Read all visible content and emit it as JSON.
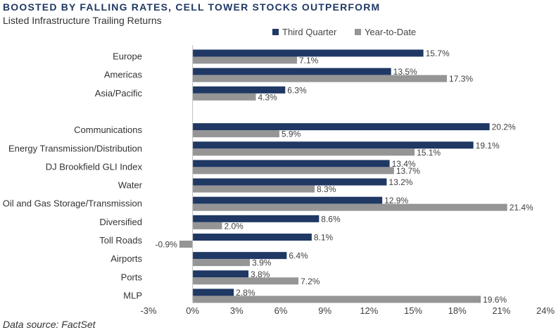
{
  "header": {
    "title": "BOOSTED BY FALLING RATES, CELL TOWER STOCKS OUTPERFORM",
    "subtitle": "Listed Infrastructure Trailing Returns"
  },
  "footer": {
    "source": "Data source: FactSet"
  },
  "colors": {
    "third_quarter": "#1f3864",
    "year_to_date": "#959595",
    "axis": "#bfbfbf"
  },
  "chart_data": {
    "type": "bar",
    "orientation": "horizontal",
    "title": "BOOSTED BY FALLING RATES, CELL TOWER STOCKS OUTPERFORM",
    "subtitle": "Listed Infrastructure Trailing Returns",
    "xlabel": "",
    "ylabel": "",
    "xlim": [
      -3,
      24
    ],
    "unit": "%",
    "ticks": [
      -3,
      0,
      3,
      6,
      9,
      12,
      15,
      18,
      21,
      24
    ],
    "tick_labels": [
      "-3%",
      "0%",
      "3%",
      "6%",
      "9%",
      "12%",
      "15%",
      "18%",
      "21%",
      "24%"
    ],
    "grid": false,
    "legend_position": "top-right",
    "categories": [
      "Europe",
      "Americas",
      "Asia/Pacific",
      "",
      "Communications",
      "Energy Transmission/Distribution",
      "DJ Brookfield GLI Index",
      "Water",
      "Oil and Gas Storage/Transmission",
      "Diversified",
      "Toll Roads",
      "Airports",
      "Ports",
      "MLP"
    ],
    "series": [
      {
        "name": "Third Quarter",
        "values": [
          15.7,
          13.5,
          6.3,
          null,
          20.2,
          19.1,
          13.4,
          13.2,
          12.9,
          8.6,
          8.1,
          6.4,
          3.8,
          2.8
        ],
        "labels": [
          "15.7%",
          "13.5%",
          "6.3%",
          "",
          "20.2%",
          "19.1%",
          "13.4%",
          "13.2%",
          "12.9%",
          "8.6%",
          "8.1%",
          "6.4%",
          "3.8%",
          "2.8%"
        ]
      },
      {
        "name": "Year-to-Date",
        "values": [
          7.1,
          17.3,
          4.3,
          null,
          5.9,
          15.1,
          13.7,
          8.3,
          21.4,
          2.0,
          -0.9,
          3.9,
          7.2,
          19.6
        ],
        "labels": [
          "7.1%",
          "17.3%",
          "4.3%",
          "",
          "5.9%",
          "15.1%",
          "13.7%",
          "8.3%",
          "21.4%",
          "2.0%",
          "-0.9%",
          "3.9%",
          "7.2%",
          "19.6%"
        ]
      }
    ]
  }
}
